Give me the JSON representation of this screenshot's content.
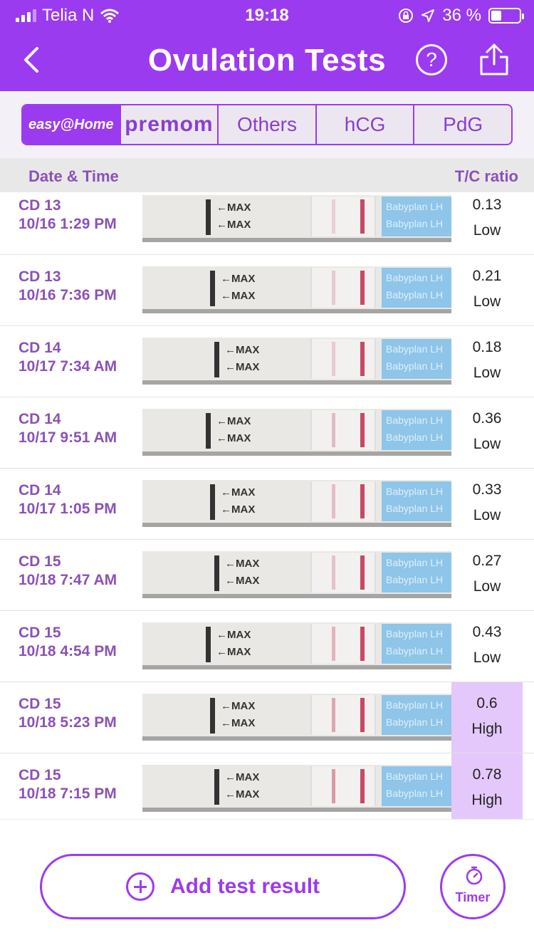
{
  "status": {
    "carrier": "Telia N",
    "time": "19:18",
    "battery": "36 %",
    "battery_level": 0.36
  },
  "nav": {
    "title": "Ovulation Tests",
    "help_label": "?"
  },
  "tabs": [
    {
      "label": "easy@Home",
      "active": true
    },
    {
      "label": "premom",
      "active": false
    },
    {
      "label": "Others",
      "active": false
    },
    {
      "label": "hCG",
      "active": false
    },
    {
      "label": "PdG",
      "active": false
    }
  ],
  "columns": {
    "left": "Date & Time",
    "right": "T/C ratio"
  },
  "strip_text": {
    "max": "←MAX",
    "brand": "Babyplan LH"
  },
  "results": [
    {
      "cd": "CD 13",
      "datetime": "10/16 1:29 PM",
      "ratio": "0.13",
      "level": "Low"
    },
    {
      "cd": "CD 13",
      "datetime": "10/16 7:36 PM",
      "ratio": "0.21",
      "level": "Low"
    },
    {
      "cd": "CD 14",
      "datetime": "10/17 7:34 AM",
      "ratio": "0.18",
      "level": "Low"
    },
    {
      "cd": "CD 14",
      "datetime": "10/17 9:51 AM",
      "ratio": "0.36",
      "level": "Low"
    },
    {
      "cd": "CD 14",
      "datetime": "10/17 1:05 PM",
      "ratio": "0.33",
      "level": "Low"
    },
    {
      "cd": "CD 15",
      "datetime": "10/18 7:47 AM",
      "ratio": "0.27",
      "level": "Low"
    },
    {
      "cd": "CD 15",
      "datetime": "10/18 4:54 PM",
      "ratio": "0.43",
      "level": "Low"
    },
    {
      "cd": "CD 15",
      "datetime": "10/18 5:23 PM",
      "ratio": "0.6",
      "level": "High"
    },
    {
      "cd": "CD 15",
      "datetime": "10/18 7:15 PM",
      "ratio": "0.78",
      "level": "High"
    }
  ],
  "bottom": {
    "add_label": "Add test result",
    "timer_label": "Timer"
  },
  "colors": {
    "accent": "#9b3bf0",
    "high_bg": "#e4c8fb",
    "date_text": "#8a52b8"
  }
}
